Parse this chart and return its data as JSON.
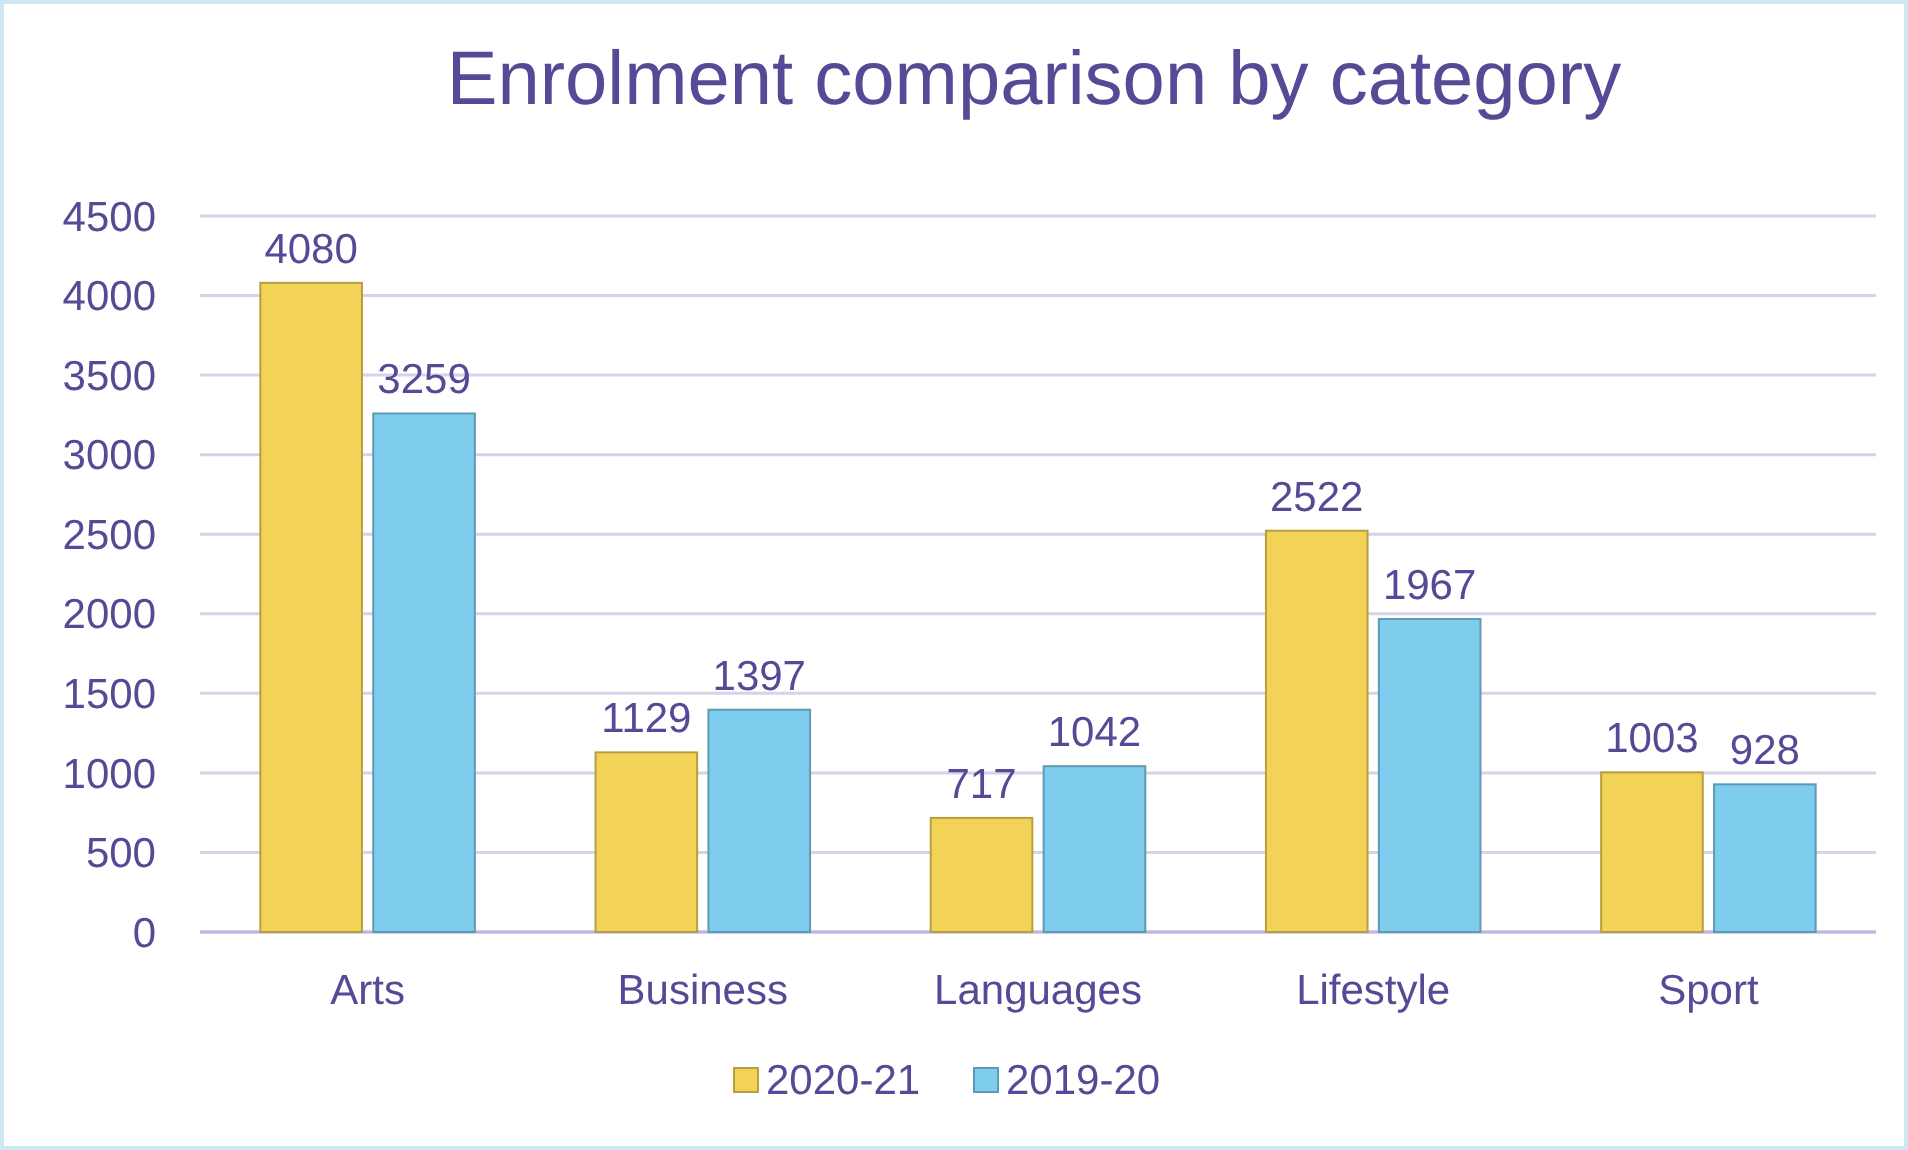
{
  "chart_data": {
    "type": "bar",
    "title": "Enrolment comparison by category",
    "categories": [
      "Arts",
      "Business",
      "Languages",
      "Lifestyle",
      "Sport"
    ],
    "series": [
      {
        "name": "2020-21",
        "color": "#f2d257",
        "values": [
          4080,
          1129,
          717,
          2522,
          1003
        ]
      },
      {
        "name": "2019-20",
        "color": "#7fcdee",
        "values": [
          3259,
          1397,
          1042,
          1967,
          928
        ]
      }
    ],
    "ylim": [
      0,
      4500
    ],
    "yticks": [
      0,
      500,
      1000,
      1500,
      2000,
      2500,
      3000,
      3500,
      4000,
      4500
    ],
    "grid": "y",
    "data_labels": true,
    "legend": "bottom"
  }
}
